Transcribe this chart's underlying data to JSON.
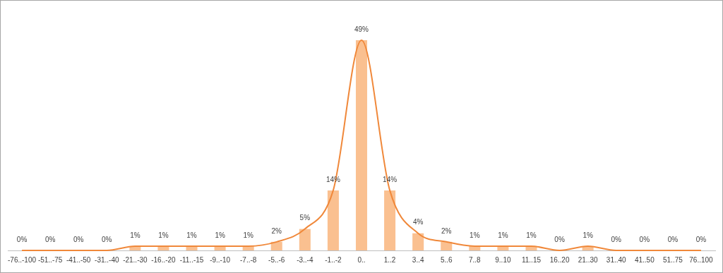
{
  "chart_data": {
    "type": "bar",
    "categories": [
      "-76..-100",
      "-51..-75",
      "-41..-50",
      "-31..-40",
      "-21..-30",
      "-16..-20",
      "-11..-15",
      "-9..-10",
      "-7..-8",
      "-5..-6",
      "-3..-4",
      "-1..-2",
      "0..",
      "1..2",
      "3..4",
      "5..6",
      "7..8",
      "9..10",
      "11..15",
      "16..20",
      "21..30",
      "31..40",
      "41..50",
      "51..75",
      "76..100"
    ],
    "series": [
      {
        "color": "#fac090",
        "values": [
          0,
          0,
          0,
          0,
          1,
          1,
          1,
          1,
          1,
          2,
          5,
          14,
          49,
          14,
          4,
          2,
          1,
          1,
          1,
          0,
          1,
          0,
          0,
          0,
          0
        ],
        "value_labels": [
          "0%",
          "0%",
          "0%",
          "0%",
          "1%",
          "1%",
          "1%",
          "1%",
          "1%",
          "2%",
          "5%",
          "14%",
          "49%",
          "14%",
          "4%",
          "2%",
          "1%",
          "1%",
          "1%",
          "0%",
          "1%",
          "0%",
          "0%",
          "0%",
          "0%"
        ]
      },
      {
        "type": "line",
        "color": "#f0883a",
        "values": [
          0,
          0,
          0,
          0,
          1,
          1,
          1,
          1,
          1,
          2,
          5,
          14,
          49,
          14,
          4,
          2,
          1,
          1,
          1,
          0,
          1,
          0,
          0,
          0,
          0
        ]
      }
    ],
    "grid": false,
    "legend": false,
    "marker": "none",
    "line_style": "solid"
  }
}
